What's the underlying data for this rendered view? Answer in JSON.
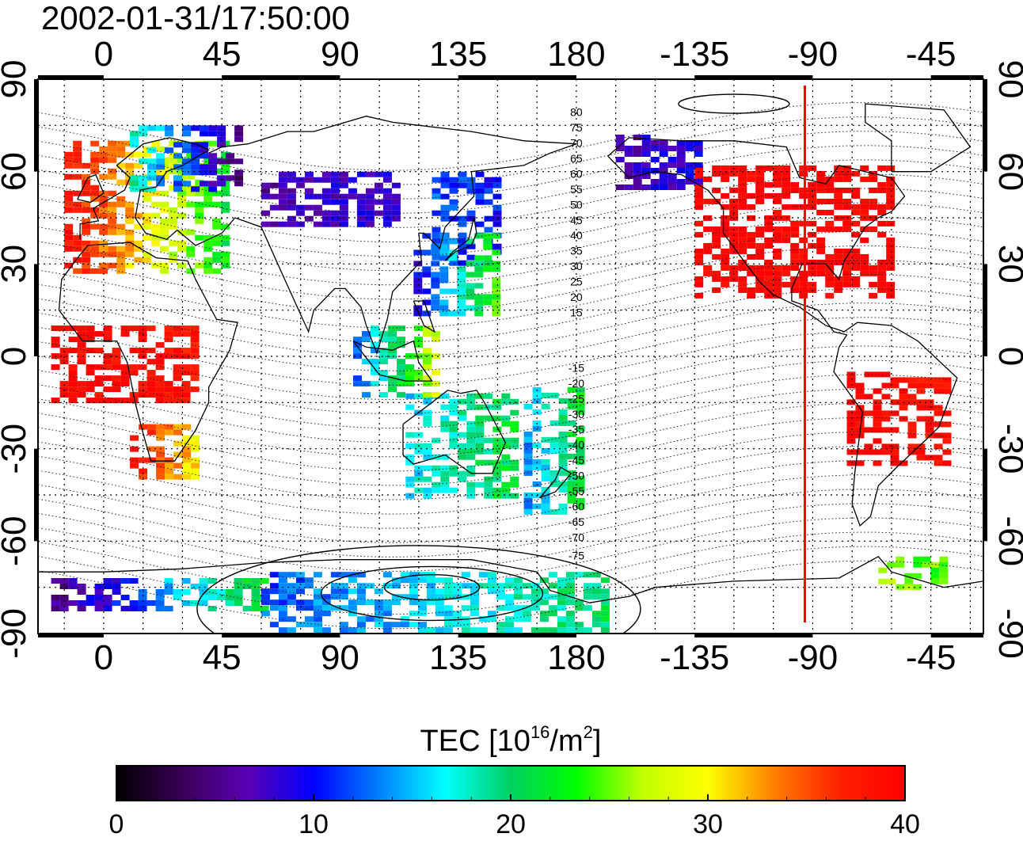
{
  "timestamp": "2002-01-31/17:50:00",
  "map": {
    "lon_ticks": [
      "0",
      "45",
      "90",
      "135",
      "180",
      "-135",
      "-90",
      "-45"
    ],
    "lon_values": [
      0,
      45,
      90,
      135,
      180,
      225,
      270,
      315
    ],
    "lon_range": [
      -25,
      335
    ],
    "lat_ticks": [
      "90",
      "60",
      "30",
      "0",
      "-30",
      "-60",
      "-90"
    ],
    "lat_values": [
      90,
      60,
      30,
      0,
      -30,
      -60,
      -90
    ],
    "lat_range": [
      -90,
      90
    ],
    "grid_step_deg": 15,
    "terminator_lon": 267,
    "terminator_color": "#ff0000",
    "contour_labels_north": [
      "80",
      "75",
      "70",
      "65",
      "60",
      "55",
      "50",
      "45",
      "40",
      "35",
      "30",
      "25",
      "20",
      "15"
    ],
    "contour_labels_north_lat": [
      78,
      73,
      68,
      63,
      58,
      53,
      48,
      43,
      38,
      33,
      28,
      23,
      18,
      13
    ],
    "contour_labels_south": [
      "-15",
      "-20",
      "-25",
      "-30",
      "-35",
      "-40",
      "-45",
      "-50",
      "-55",
      "-60",
      "-65",
      "-70",
      "-75"
    ],
    "contour_labels_south_lat": [
      -5,
      -10,
      -15,
      -20,
      -25,
      -30,
      -35,
      -40,
      -45,
      -50,
      -55,
      -60,
      -66
    ],
    "contour_label_lon": 180
  },
  "colorbar": {
    "title_main": "TEC  [10",
    "title_exp": "16",
    "title_unit": "/m",
    "title_sq": "2",
    "title_close": "]",
    "min": 0,
    "max": 40,
    "ticks": [
      "0",
      "10",
      "20",
      "30",
      "40"
    ],
    "tick_values": [
      0,
      10,
      20,
      30,
      40
    ],
    "colors": [
      "#000000",
      "#3a0055",
      "#5a00b5",
      "#0000ff",
      "#0080ff",
      "#00ffff",
      "#00d060",
      "#00ff00",
      "#c0ff00",
      "#ffff00",
      "#ff8000",
      "#ff2000",
      "#ff0000"
    ]
  },
  "chart_data": {
    "type": "heatmap",
    "title": "2002-01-31/17:50:00",
    "xlabel": "",
    "ylabel": "",
    "xlim": [
      -25,
      335
    ],
    "ylim": [
      -90,
      90
    ],
    "value_range": [
      0,
      40
    ],
    "regions": [
      {
        "lon": [
          -15,
          45
        ],
        "lat": [
          28,
          70
        ],
        "v0": 38,
        "v1": 22
      },
      {
        "lon": [
          10,
          50
        ],
        "lat": [
          55,
          75
        ],
        "v0": 18,
        "v1": 5
      },
      {
        "lon": [
          60,
          110
        ],
        "lat": [
          42,
          60
        ],
        "v0": 6,
        "v1": 9
      },
      {
        "lon": [
          125,
          150
        ],
        "lat": [
          30,
          60
        ],
        "v0": 12,
        "v1": 10
      },
      {
        "lon": [
          118,
          148
        ],
        "lat": [
          14,
          40
        ],
        "v0": 9,
        "v1": 24
      },
      {
        "lon": [
          225,
          300
        ],
        "lat": [
          20,
          62
        ],
        "v0": 40,
        "v1": 40
      },
      {
        "lon": [
          195,
          225
        ],
        "lat": [
          55,
          72
        ],
        "v0": 7,
        "v1": 9
      },
      {
        "lon": [
          283,
          320
        ],
        "lat": [
          -35,
          -5
        ],
        "v0": 40,
        "v1": 38
      },
      {
        "lon": [
          10,
          35
        ],
        "lat": [
          -40,
          -22
        ],
        "v0": 38,
        "v1": 30
      },
      {
        "lon": [
          115,
          155
        ],
        "lat": [
          -45,
          -12
        ],
        "v0": 16,
        "v1": 21
      },
      {
        "lon": [
          160,
          180
        ],
        "lat": [
          -50,
          -10
        ],
        "v0": 14,
        "v1": 22
      },
      {
        "lon": [
          -20,
          60
        ],
        "lat": [
          -82,
          -72
        ],
        "v0": 5,
        "v1": 22
      },
      {
        "lon": [
          60,
          190
        ],
        "lat": [
          -90,
          -70
        ],
        "v0": 12,
        "v1": 20
      },
      {
        "lon": [
          295,
          320
        ],
        "lat": [
          -75,
          -65
        ],
        "v0": 26,
        "v1": 24
      },
      {
        "lon": [
          -20,
          35
        ],
        "lat": [
          -15,
          10
        ],
        "v0": 40,
        "v1": 38
      },
      {
        "lon": [
          95,
          125
        ],
        "lat": [
          -12,
          10
        ],
        "v0": 12,
        "v1": 28
      }
    ]
  }
}
